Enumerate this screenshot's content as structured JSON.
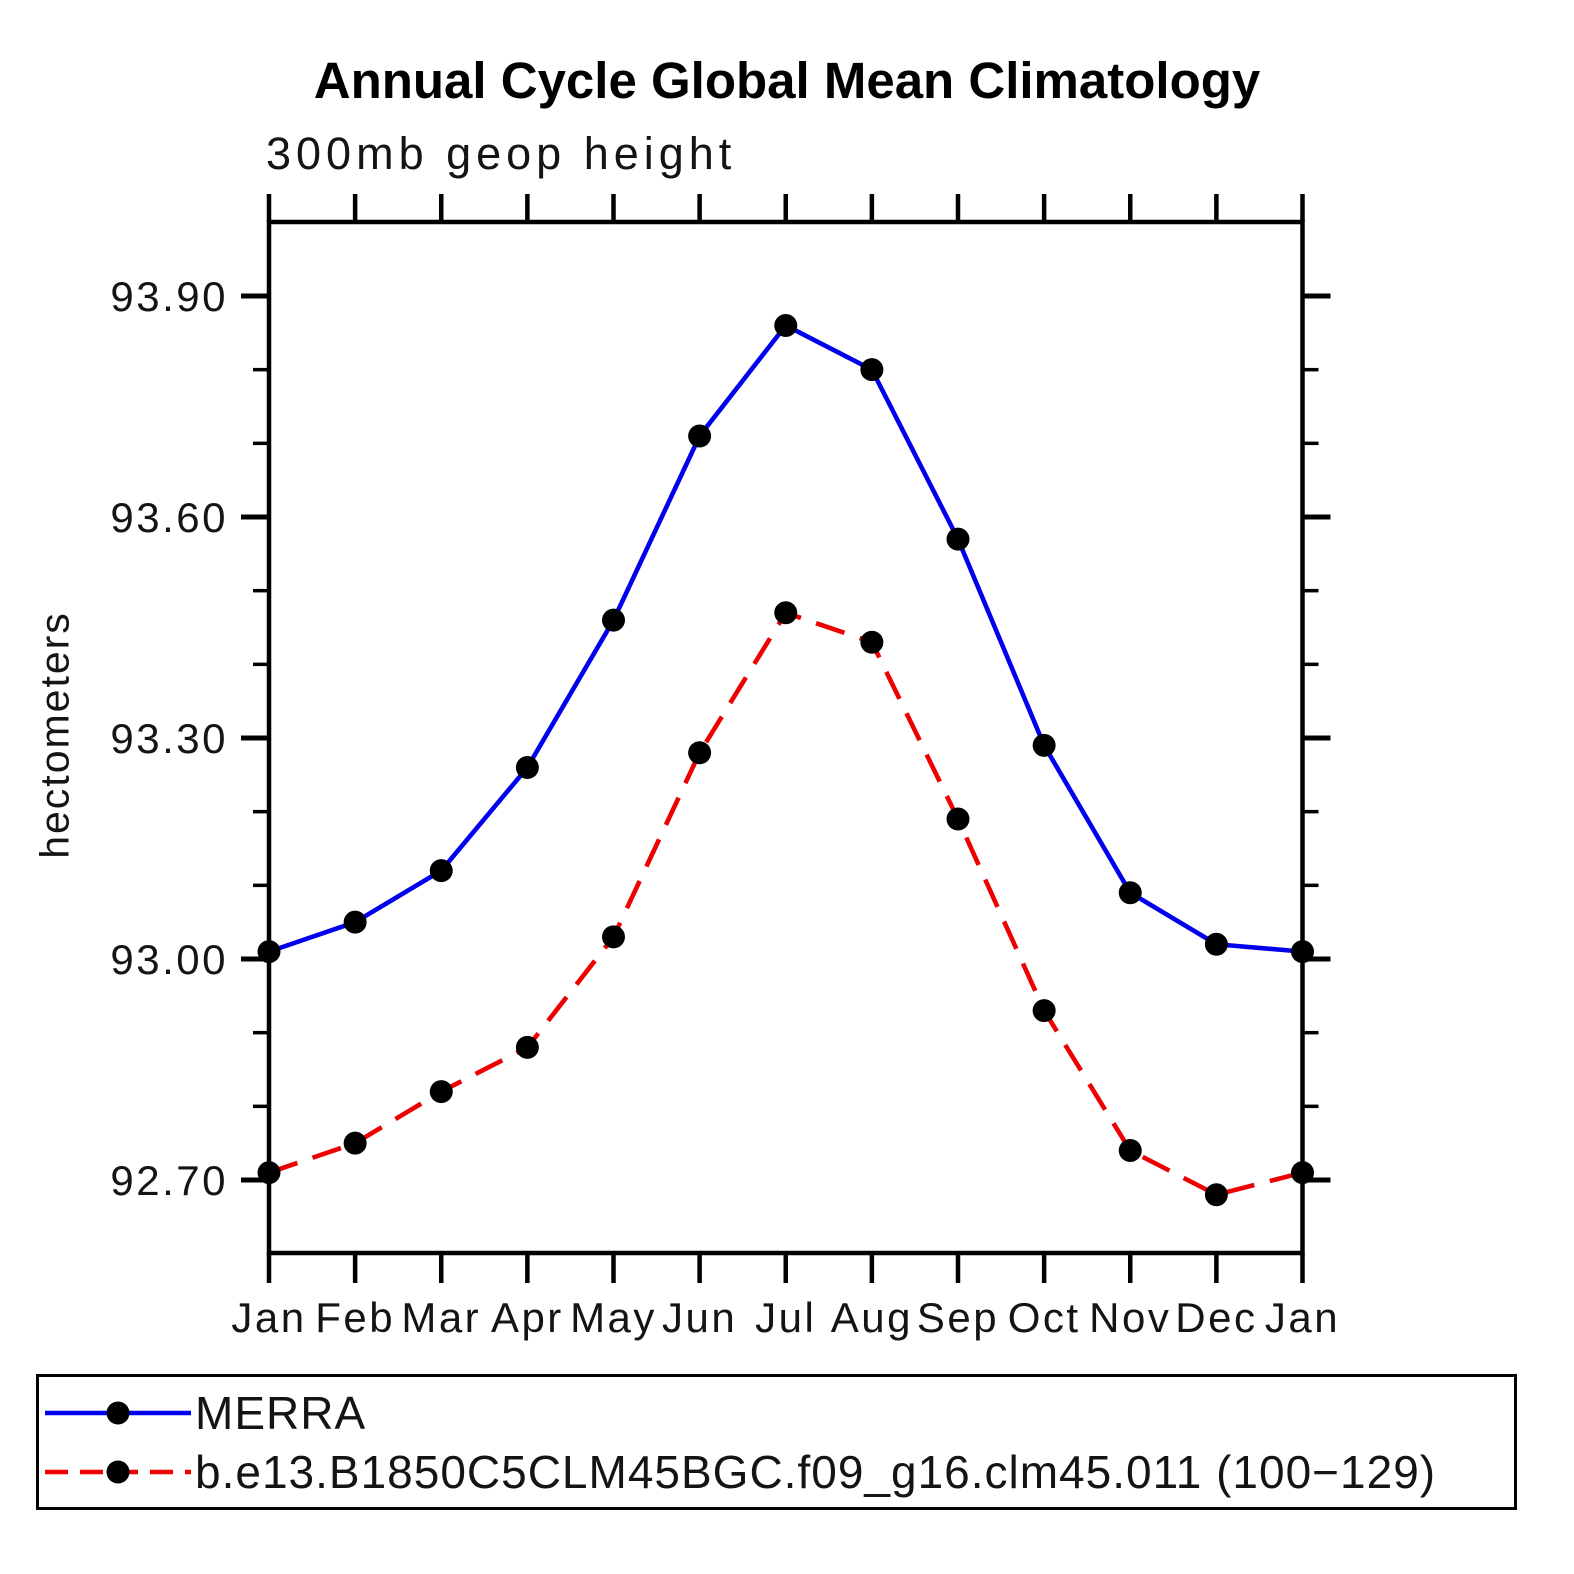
{
  "chart_data": {
    "type": "line",
    "title": "Annual Cycle Global Mean Climatology",
    "subtitle": "300mb geop height",
    "ylabel": "hectometers",
    "xlabel": "",
    "x_categories": [
      "Jan",
      "Feb",
      "Mar",
      "Apr",
      "May",
      "Jun",
      "Jul",
      "Aug",
      "Sep",
      "Oct",
      "Nov",
      "Dec",
      "Jan"
    ],
    "y_tick_labels": [
      "93.90",
      "93.60",
      "93.30",
      "93.00",
      "92.70"
    ],
    "y_minor_tick_step": 0.1,
    "ylim": [
      92.6,
      94.0
    ],
    "grid": "off",
    "legend_position": "bottom-box",
    "axis_color": "#000000",
    "marker_color": "#000000",
    "series": [
      {
        "name": "MERRA",
        "line_color": "#0000ee",
        "line_style": "solid",
        "marker": "filled-circle",
        "values": [
          93.01,
          93.05,
          93.12,
          93.26,
          93.46,
          93.71,
          93.86,
          93.8,
          93.57,
          93.29,
          93.09,
          93.02,
          93.01
        ]
      },
      {
        "name": "b.e13.B1850C5CLM45BGC.f09_g16.clm45.011 (100−129)",
        "line_color": "#ee0000",
        "line_style": "dashed",
        "marker": "filled-circle",
        "values": [
          92.71,
          92.75,
          92.82,
          92.88,
          93.03,
          93.28,
          93.47,
          93.43,
          93.19,
          92.93,
          92.74,
          92.68,
          92.71
        ]
      }
    ]
  }
}
